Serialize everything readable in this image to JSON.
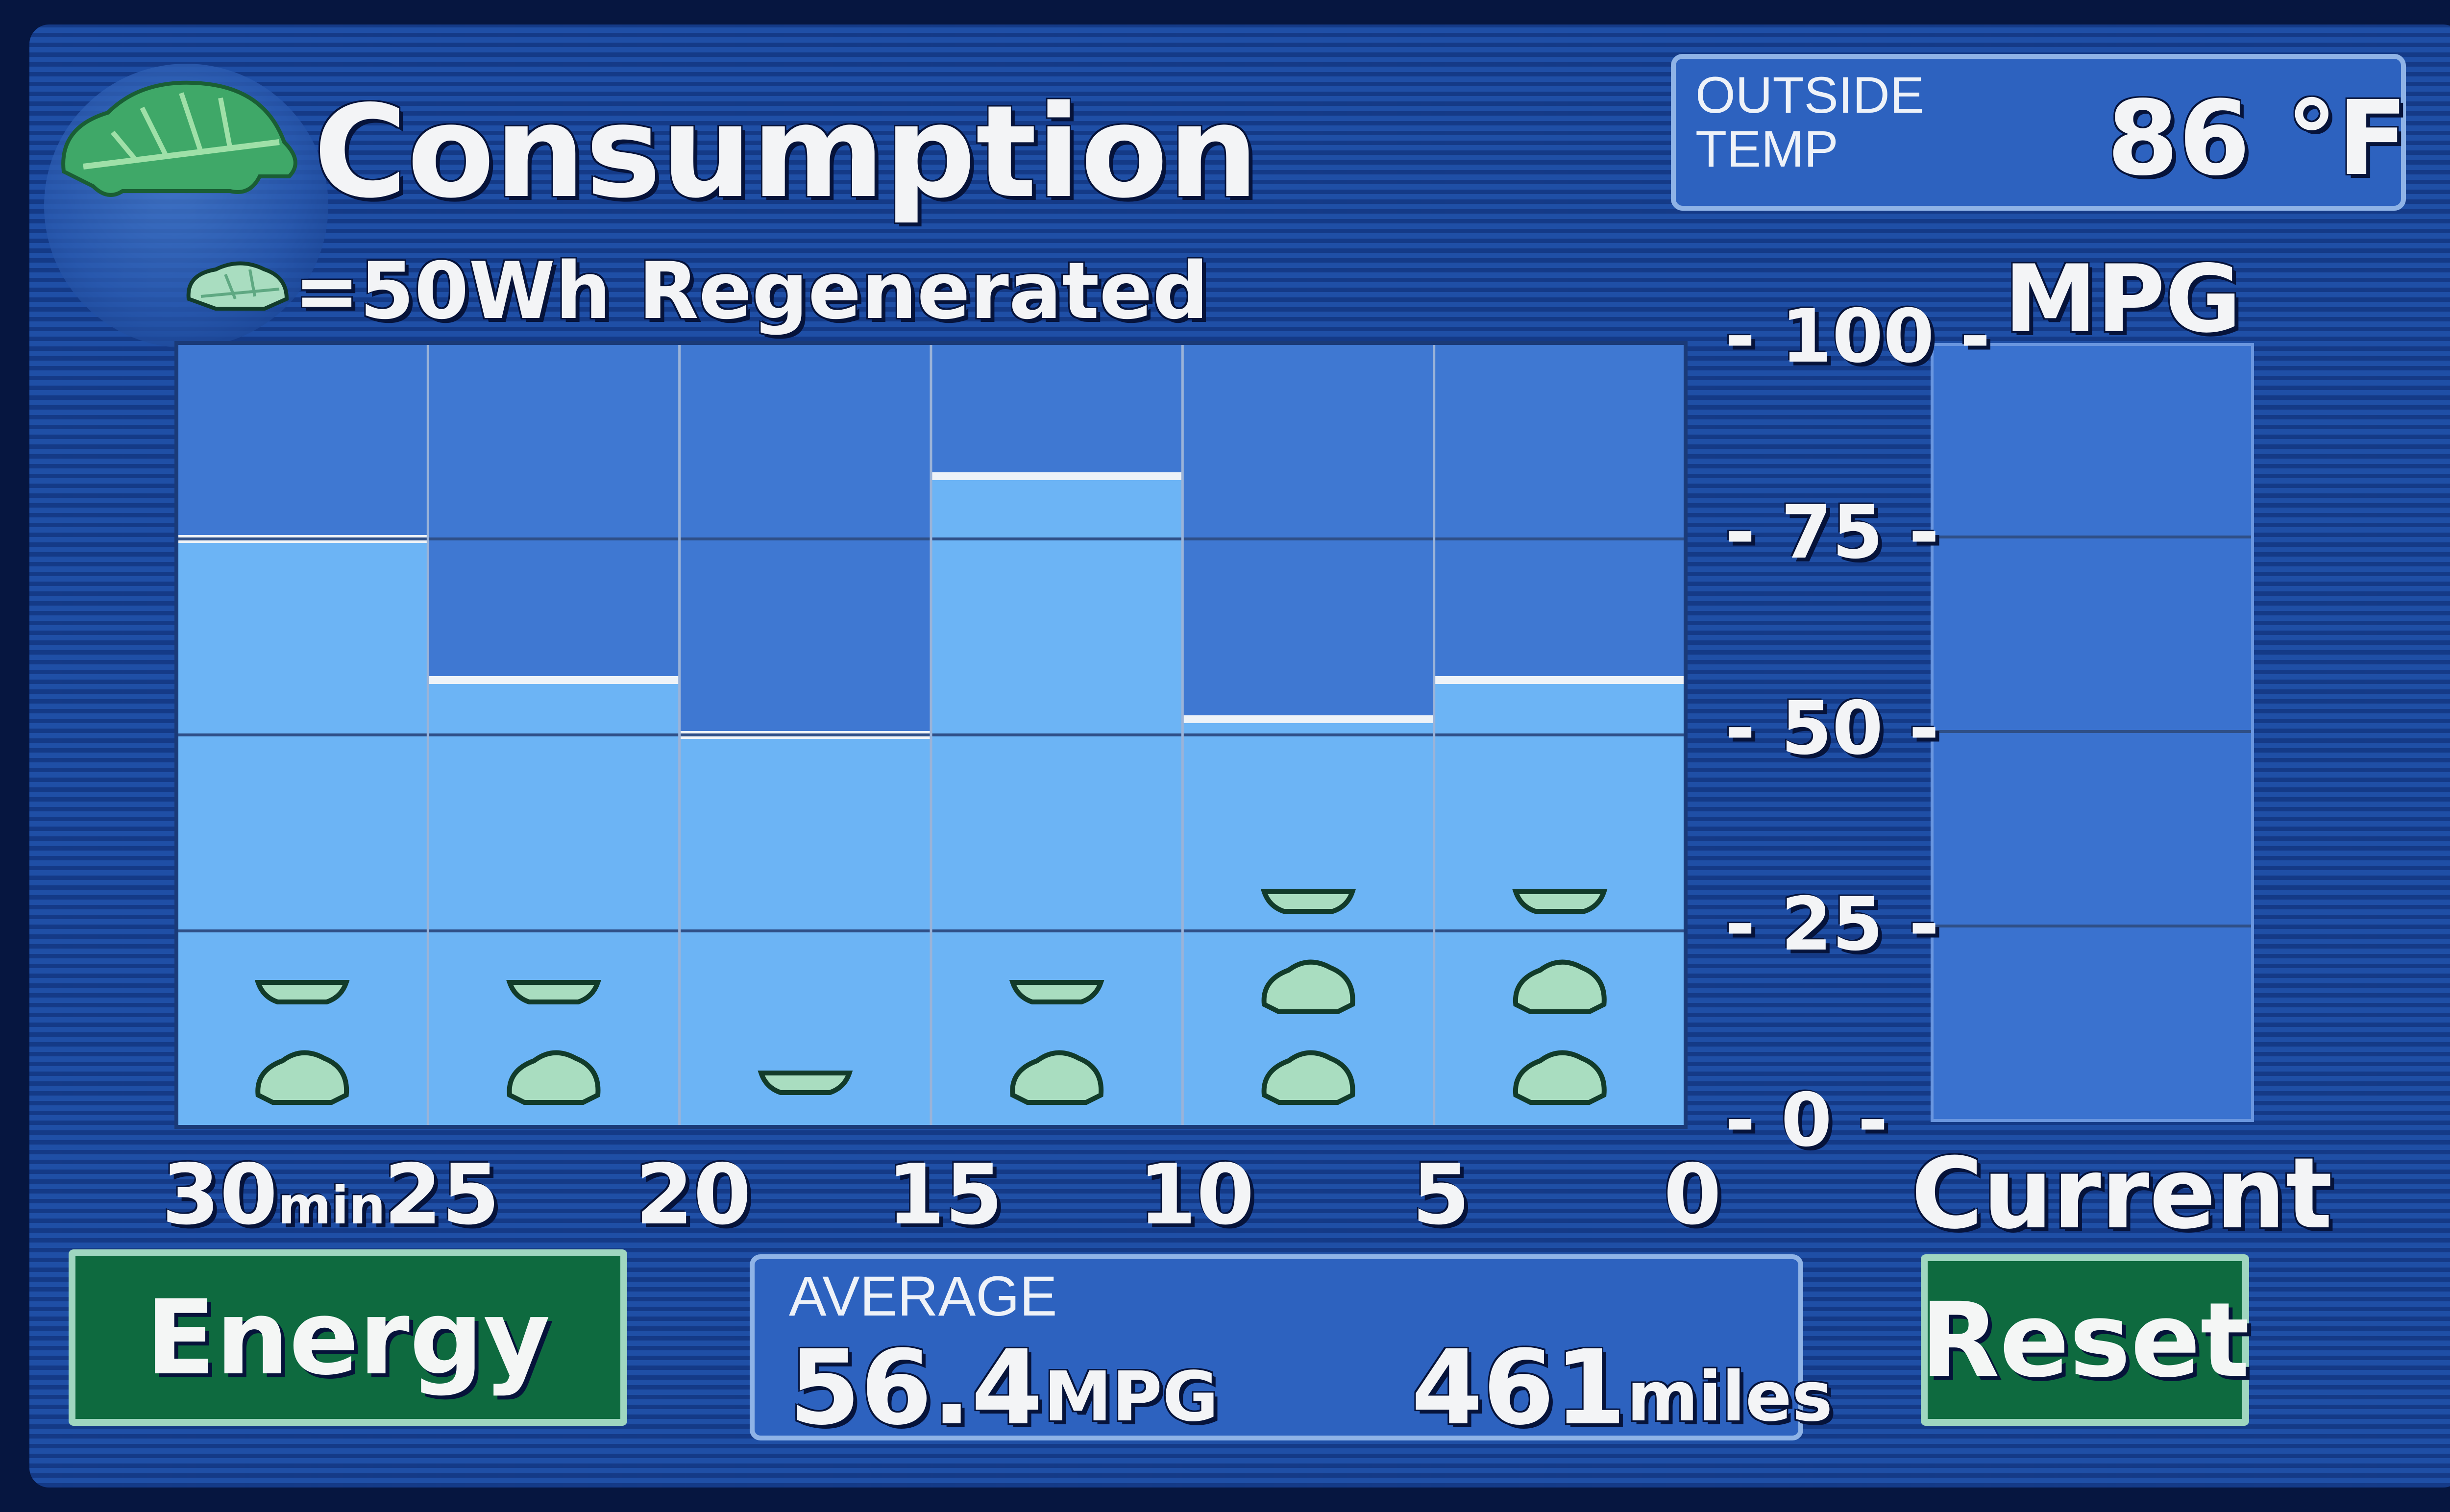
{
  "header": {
    "title": "Consumption",
    "legend_text": "=50Wh Regenerated"
  },
  "outside_temp": {
    "label_line1": "OUTSIDE",
    "label_line2": "TEMP",
    "value": "86 °F"
  },
  "current_panel": {
    "heading": "MPG",
    "label": "Current"
  },
  "average": {
    "label": "AVERAGE",
    "mpg_value": "56.4",
    "mpg_unit": "MPG",
    "distance_value": "461",
    "distance_unit": "miles"
  },
  "buttons": {
    "energy": "Energy",
    "reset": "Reset"
  },
  "colors": {
    "bar_fill": "#6cb4f5",
    "bar_bg": "#3f78d2",
    "gridline": "#2f4f87",
    "bar_top": "#eef3f8",
    "leaf": "#a9ddc0"
  },
  "chart_data": {
    "type": "bar",
    "ylabel": "MPG",
    "y_ticks": [
      "100",
      "75",
      "50",
      "25",
      "0"
    ],
    "ylim": [
      0,
      100
    ],
    "x_tick_labels": [
      "30",
      "25",
      "20",
      "15",
      "10",
      "5",
      "0"
    ],
    "x_unit": "min",
    "categories": [
      "30-25",
      "25-20",
      "20-15",
      "15-10",
      "10-5",
      "5-0"
    ],
    "values": [
      75,
      57,
      50,
      83,
      52,
      57
    ],
    "regen_icons_per_interval": [
      2,
      2,
      1,
      2,
      3,
      3
    ],
    "regen_icon_value": "50Wh",
    "grid": true
  }
}
